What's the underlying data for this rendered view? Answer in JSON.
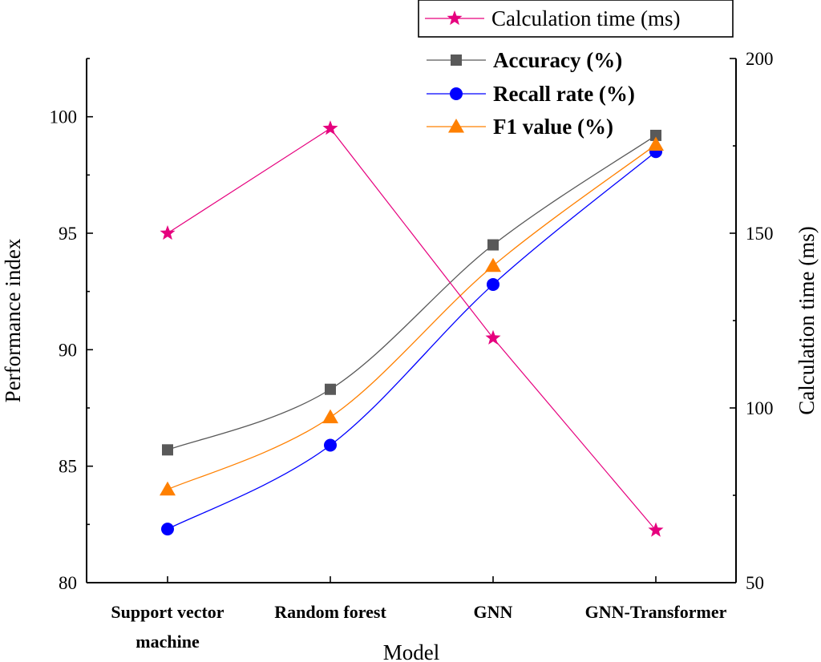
{
  "chart_data": {
    "type": "line",
    "xlabel": "Model",
    "ylabel": "Performance index",
    "y2label": "Calculation time (ms)",
    "categories": [
      "Support vector machine",
      "Random forest",
      "GNN",
      "GNN-Transformer"
    ],
    "category_lines": [
      [
        "Support vector",
        "machine"
      ],
      [
        "Random forest"
      ],
      [
        "GNN"
      ],
      [
        "GNN-Transformer"
      ]
    ],
    "ylim": [
      80,
      102.5
    ],
    "yticks": [
      80,
      85,
      90,
      95,
      100
    ],
    "y2lim": [
      50,
      200
    ],
    "y2ticks": [
      50,
      100,
      150,
      200
    ],
    "series": [
      {
        "name": "Accuracy (%)",
        "axis": "left",
        "marker": "square",
        "color": "#595959",
        "smooth": true,
        "values": [
          85.7,
          88.3,
          94.5,
          99.2
        ]
      },
      {
        "name": "Recall rate (%)",
        "axis": "left",
        "marker": "circle",
        "color": "#0000ff",
        "smooth": true,
        "values": [
          82.3,
          85.9,
          92.8,
          98.5
        ]
      },
      {
        "name": "F1 value (%)",
        "axis": "left",
        "marker": "triangle",
        "color": "#ff8000",
        "smooth": true,
        "values": [
          84.0,
          87.1,
          93.6,
          98.8
        ]
      },
      {
        "name": "Calculation time (ms)",
        "axis": "right",
        "marker": "star",
        "color": "#e6007e",
        "smooth": false,
        "values": [
          150,
          180,
          120,
          65
        ]
      }
    ],
    "legend": {
      "boxed": [
        "Calculation time (ms)"
      ],
      "plain": [
        "Accuracy (%)",
        "Recall rate (%)",
        "F1 value (%)"
      ],
      "position": "top-right"
    }
  }
}
